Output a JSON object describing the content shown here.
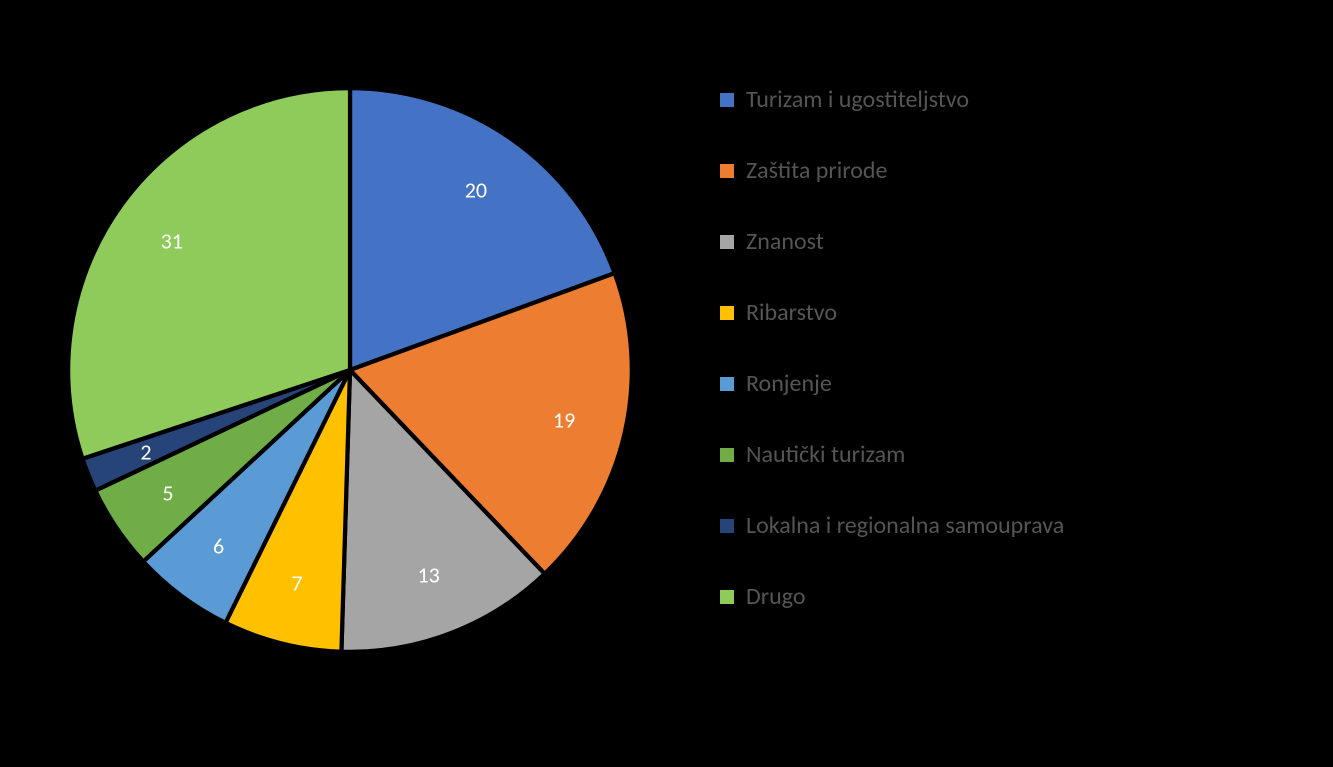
{
  "chart": {
    "type": "pie",
    "background_color": "#000000",
    "label_color": "#ffffff",
    "label_fontsize": 22,
    "legend_text_color": "#555555",
    "legend_fontsize": 24,
    "swatch_size": 14,
    "start_angle_deg": -90,
    "slices": [
      {
        "label": "Turizam i ugostiteljstvo",
        "value": 20,
        "color": "#4472c4"
      },
      {
        "label": "Zaštita prirode",
        "value": 19,
        "color": "#ed7d31"
      },
      {
        "label": "Znanost",
        "value": 13,
        "color": "#a5a5a5"
      },
      {
        "label": "Ribarstvo",
        "value": 7,
        "color": "#ffc000"
      },
      {
        "label": "Ronjenje",
        "value": 6,
        "color": "#5b9bd5"
      },
      {
        "label": "Nautički turizam",
        "value": 5,
        "color": "#70ad47"
      },
      {
        "label": "Lokalna i regionalna samouprava",
        "value": 2,
        "color": "#264478"
      },
      {
        "label": "Drugo",
        "value": 31,
        "color": "#8ecb5a"
      }
    ],
    "slice_gap_color": "#000000",
    "slice_gap_width": 1.5
  }
}
